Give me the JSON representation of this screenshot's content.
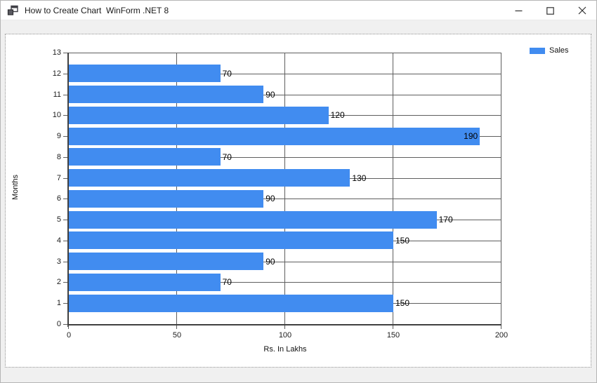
{
  "window": {
    "title": "How to Create Chart  WinForm .NET 8",
    "icon": "winforms-app-icon",
    "controls": [
      {
        "name": "minimize"
      },
      {
        "name": "maximize"
      },
      {
        "name": "close"
      }
    ]
  },
  "chart_data": {
    "type": "bar",
    "orientation": "horizontal",
    "xlabel": "Rs. In Lakhs",
    "ylabel": "Months",
    "xlim": [
      0,
      200
    ],
    "ylim": [
      0,
      13
    ],
    "x_ticks": [
      0,
      50,
      100,
      150,
      200
    ],
    "y_ticks": [
      0,
      1,
      2,
      3,
      4,
      5,
      6,
      7,
      8,
      9,
      10,
      11,
      12,
      13
    ],
    "grid": true,
    "legend": {
      "position": "top-right",
      "entries": [
        {
          "label": "Sales",
          "color": "#418CF0"
        }
      ]
    },
    "series": [
      {
        "name": "Sales",
        "color": "#418CF0",
        "points": [
          {
            "month": 1,
            "value": 150,
            "label": "150",
            "label_position": "outside"
          },
          {
            "month": 2,
            "value": 70,
            "label": "70",
            "label_position": "outside"
          },
          {
            "month": 3,
            "value": 90,
            "label": "90",
            "label_position": "outside"
          },
          {
            "month": 4,
            "value": 150,
            "label": "150",
            "label_position": "outside"
          },
          {
            "month": 5,
            "value": 170,
            "label": "170",
            "label_position": "outside"
          },
          {
            "month": 6,
            "value": 90,
            "label": "90",
            "label_position": "outside"
          },
          {
            "month": 7,
            "value": 130,
            "label": "130",
            "label_position": "outside"
          },
          {
            "month": 8,
            "value": 70,
            "label": "70",
            "label_position": "outside"
          },
          {
            "month": 9,
            "value": 190,
            "label": "190",
            "label_position": "inside"
          },
          {
            "month": 10,
            "value": 120,
            "label": "120",
            "label_position": "outside"
          },
          {
            "month": 11,
            "value": 90,
            "label": "90",
            "label_position": "outside"
          },
          {
            "month": 12,
            "value": 70,
            "label": "70",
            "label_position": "outside"
          }
        ]
      }
    ],
    "colors": {
      "bar": "#418CF0",
      "grid": "#5e5e5e",
      "axis": "#404040",
      "plot_background": "#FFFFFF",
      "chart_background": "#FFFFFF",
      "form_background": "#F0F0F0"
    }
  }
}
